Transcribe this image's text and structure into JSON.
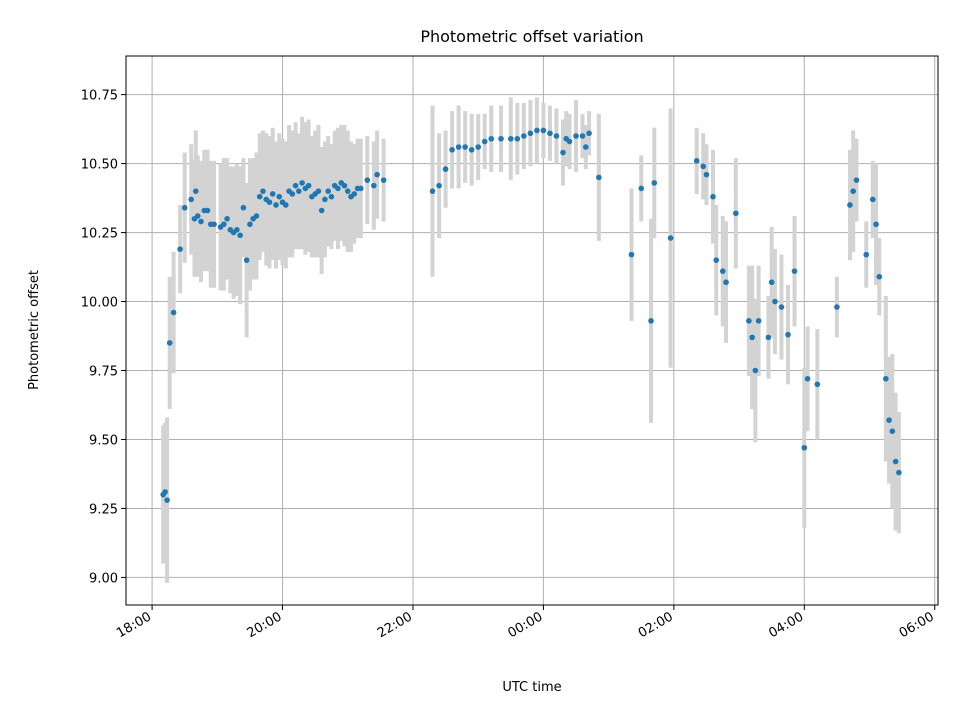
{
  "chart_data": {
    "type": "scatter",
    "title": "Photometric offset variation",
    "xlabel": "UTC time",
    "ylabel": "Photometric offset",
    "x_ticks": [
      "18:00",
      "20:00",
      "22:00",
      "00:00",
      "02:00",
      "04:00",
      "06:00"
    ],
    "x_tick_hours": [
      0,
      2,
      4,
      6,
      8,
      10,
      12
    ],
    "x_range_hours": [
      -0.4,
      12.05
    ],
    "x_hours_origin_label": "18:00",
    "y_ticks": [
      "9.00",
      "9.25",
      "9.50",
      "9.75",
      "10.00",
      "10.25",
      "10.50",
      "10.75"
    ],
    "ylim": [
      8.9,
      10.89
    ],
    "grid": true,
    "colors": {
      "point": "#1f77b4",
      "errorbar": "#d3d3d3",
      "grid": "#b0b0b0"
    },
    "series": [
      {
        "x_hours": [
          0.17,
          0.2,
          0.23,
          0.27,
          0.33,
          0.43,
          0.5,
          0.6,
          0.65,
          0.67,
          0.7,
          0.75,
          0.8,
          0.85,
          0.9,
          0.95,
          1.05,
          1.1,
          1.15,
          1.2,
          1.25,
          1.3,
          1.35,
          1.4,
          1.45,
          1.5,
          1.55,
          1.6,
          1.65,
          1.7,
          1.75,
          1.8,
          1.85,
          1.9,
          1.95,
          2.0,
          2.05,
          2.1,
          2.15,
          2.2,
          2.25,
          2.3,
          2.35,
          2.4,
          2.45,
          2.5,
          2.55,
          2.6,
          2.65,
          2.7,
          2.75,
          2.8,
          2.85,
          2.9,
          2.95,
          3.0,
          3.05,
          3.1,
          3.15,
          3.2,
          3.3,
          3.4,
          3.45,
          3.55,
          4.3,
          4.4,
          4.5,
          4.6,
          4.7,
          4.8,
          4.9,
          5.0,
          5.1,
          5.2,
          5.35,
          5.5,
          5.6,
          5.7,
          5.8,
          5.9,
          6.0,
          6.1,
          6.2,
          6.3,
          6.35,
          6.4,
          6.5,
          6.6,
          6.65,
          6.7,
          6.85,
          7.35,
          7.5,
          7.65,
          7.7,
          7.95,
          8.35,
          8.45,
          8.5,
          8.6,
          8.65,
          8.75,
          8.8,
          8.95,
          9.15,
          9.2,
          9.25,
          9.3,
          9.45,
          9.5,
          9.55,
          9.65,
          9.75,
          9.85,
          10.0,
          10.05,
          10.2,
          10.5,
          10.7,
          10.75,
          10.8,
          10.95,
          11.05,
          11.1,
          11.15,
          11.25,
          11.3,
          11.35,
          11.4,
          11.45
        ],
        "y": [
          9.3,
          9.31,
          9.28,
          9.85,
          9.96,
          10.19,
          10.34,
          10.37,
          10.3,
          10.4,
          10.31,
          10.29,
          10.33,
          10.33,
          10.28,
          10.28,
          10.27,
          10.28,
          10.3,
          10.26,
          10.25,
          10.26,
          10.24,
          10.34,
          10.15,
          10.28,
          10.3,
          10.31,
          10.38,
          10.4,
          10.37,
          10.36,
          10.39,
          10.35,
          10.38,
          10.36,
          10.35,
          10.4,
          10.39,
          10.42,
          10.4,
          10.43,
          10.41,
          10.42,
          10.38,
          10.39,
          10.4,
          10.33,
          10.37,
          10.4,
          10.38,
          10.42,
          10.41,
          10.43,
          10.42,
          10.4,
          10.38,
          10.39,
          10.41,
          10.41,
          10.44,
          10.42,
          10.46,
          10.44,
          10.4,
          10.42,
          10.48,
          10.55,
          10.56,
          10.56,
          10.55,
          10.56,
          10.58,
          10.59,
          10.59,
          10.59,
          10.59,
          10.6,
          10.61,
          10.62,
          10.62,
          10.61,
          10.6,
          10.54,
          10.59,
          10.58,
          10.6,
          10.6,
          10.56,
          10.61,
          10.45,
          10.17,
          10.41,
          9.93,
          10.43,
          10.23,
          10.51,
          10.49,
          10.46,
          10.38,
          10.15,
          10.11,
          10.07,
          10.32,
          9.93,
          9.87,
          9.75,
          9.93,
          9.87,
          10.07,
          10.0,
          9.98,
          9.88,
          10.11,
          9.47,
          9.72,
          9.7,
          9.98,
          10.35,
          10.4,
          10.44,
          10.17,
          10.37,
          10.28,
          10.09,
          9.72,
          9.57,
          9.53,
          9.42,
          9.38
        ],
        "yerr": [
          0.25,
          0.25,
          0.3,
          0.24,
          0.22,
          0.16,
          0.2,
          0.2,
          0.21,
          0.22,
          0.22,
          0.22,
          0.22,
          0.22,
          0.23,
          0.23,
          0.23,
          0.24,
          0.22,
          0.23,
          0.24,
          0.24,
          0.25,
          0.18,
          0.28,
          0.24,
          0.22,
          0.23,
          0.23,
          0.22,
          0.24,
          0.24,
          0.24,
          0.23,
          0.23,
          0.23,
          0.23,
          0.24,
          0.23,
          0.23,
          0.21,
          0.24,
          0.24,
          0.24,
          0.22,
          0.23,
          0.24,
          0.23,
          0.21,
          0.2,
          0.19,
          0.2,
          0.22,
          0.21,
          0.22,
          0.22,
          0.2,
          0.18,
          0.18,
          0.18,
          0.16,
          0.16,
          0.16,
          0.15,
          0.31,
          0.19,
          0.14,
          0.14,
          0.15,
          0.13,
          0.13,
          0.12,
          0.1,
          0.12,
          0.12,
          0.15,
          0.13,
          0.12,
          0.12,
          0.12,
          0.1,
          0.1,
          0.1,
          0.12,
          0.1,
          0.1,
          0.13,
          0.08,
          0.08,
          0.08,
          0.23,
          0.24,
          0.12,
          0.37,
          0.2,
          0.47,
          0.12,
          0.12,
          0.11,
          0.17,
          0.2,
          0.2,
          0.22,
          0.2,
          0.2,
          0.26,
          0.26,
          0.2,
          0.15,
          0.2,
          0.19,
          0.19,
          0.18,
          0.2,
          0.29,
          0.19,
          0.2,
          0.11,
          0.2,
          0.22,
          0.15,
          0.12,
          0.14,
          0.22,
          0.14,
          0.3,
          0.23,
          0.28,
          0.25,
          0.22
        ]
      }
    ]
  }
}
